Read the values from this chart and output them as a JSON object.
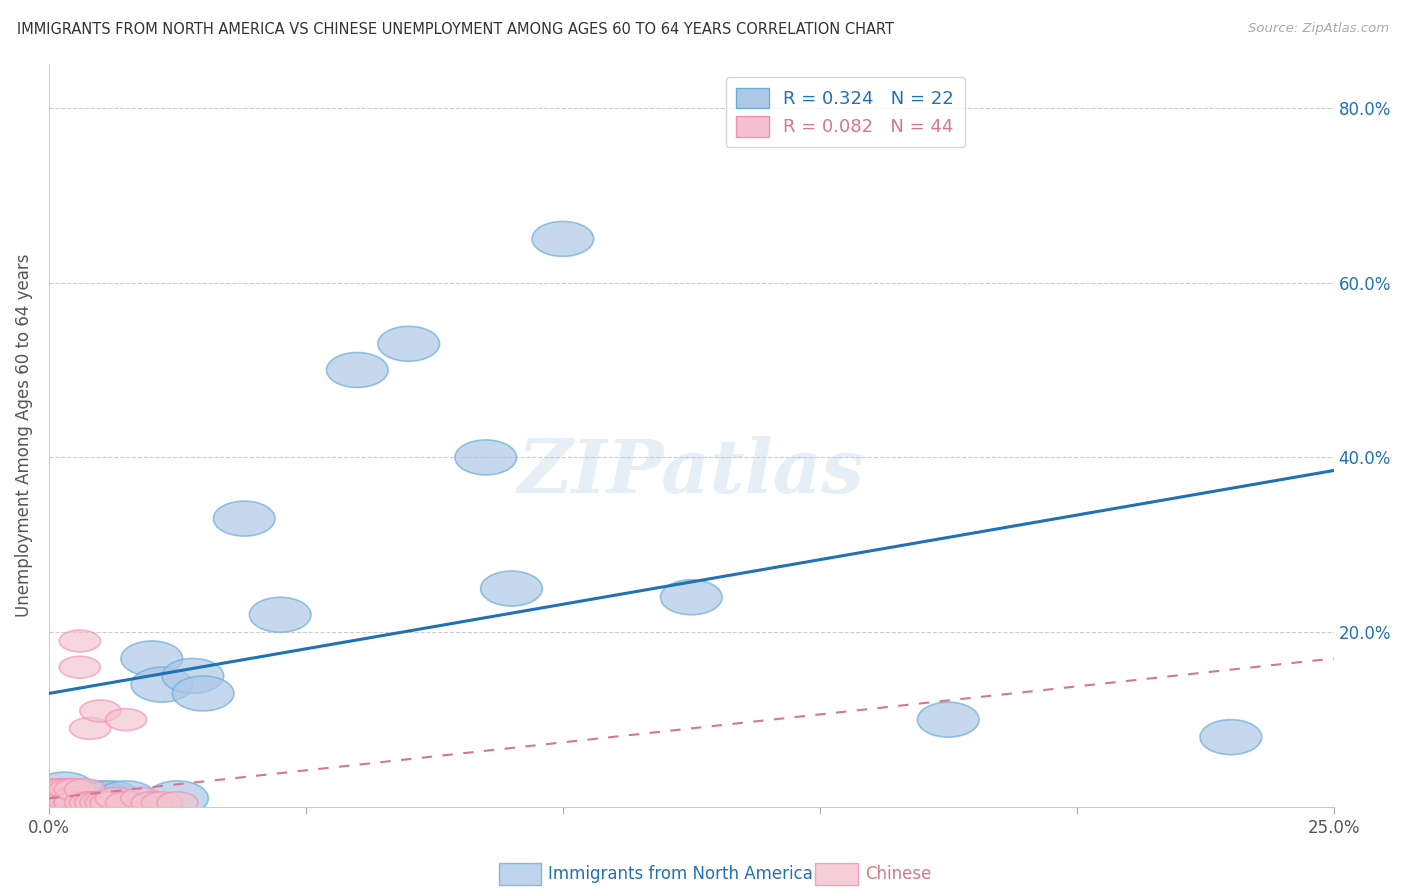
{
  "title": "IMMIGRANTS FROM NORTH AMERICA VS CHINESE UNEMPLOYMENT AMONG AGES 60 TO 64 YEARS CORRELATION CHART",
  "source": "Source: ZipAtlas.com",
  "ylabel": "Unemployment Among Ages 60 to 64 years",
  "xlim": [
    0.0,
    0.25
  ],
  "ylim": [
    0.0,
    0.85
  ],
  "xtick_positions": [
    0.0,
    0.05,
    0.1,
    0.15,
    0.2,
    0.25
  ],
  "xtick_labels": [
    "0.0%",
    "",
    "",
    "",
    "",
    "25.0%"
  ],
  "ytick_positions": [
    0.0,
    0.2,
    0.4,
    0.6,
    0.8
  ],
  "ytick_labels_right": [
    "",
    "20.0%",
    "40.0%",
    "60.0%",
    "80.0%"
  ],
  "blue_R": 0.324,
  "blue_N": 22,
  "pink_R": 0.082,
  "pink_N": 44,
  "blue_color": "#aec8e8",
  "blue_edge_color": "#6baed6",
  "pink_color": "#f4c2cf",
  "pink_edge_color": "#f48fb1",
  "blue_line_color": "#2171b5",
  "pink_line_color": "#d4788a",
  "watermark": "ZIPatlas",
  "blue_line_x0": 0.0,
  "blue_line_y0": 0.13,
  "blue_line_x1": 0.25,
  "blue_line_y1": 0.385,
  "pink_line_x0": 0.0,
  "pink_line_y0": 0.01,
  "pink_line_x1": 0.25,
  "pink_line_y1": 0.17,
  "blue_points_x": [
    0.001,
    0.003,
    0.005,
    0.008,
    0.01,
    0.012,
    0.015,
    0.02,
    0.022,
    0.025,
    0.028,
    0.03,
    0.038,
    0.045,
    0.06,
    0.07,
    0.085,
    0.09,
    0.1,
    0.125,
    0.175,
    0.23
  ],
  "blue_points_y": [
    0.01,
    0.02,
    0.01,
    0.01,
    0.01,
    0.01,
    0.01,
    0.17,
    0.14,
    0.01,
    0.15,
    0.13,
    0.33,
    0.22,
    0.5,
    0.53,
    0.4,
    0.25,
    0.65,
    0.24,
    0.1,
    0.08
  ],
  "pink_points_x": [
    0.0,
    0.0,
    0.001,
    0.001,
    0.001,
    0.001,
    0.001,
    0.002,
    0.002,
    0.002,
    0.002,
    0.002,
    0.002,
    0.003,
    0.003,
    0.003,
    0.003,
    0.003,
    0.004,
    0.004,
    0.004,
    0.004,
    0.005,
    0.005,
    0.005,
    0.005,
    0.006,
    0.006,
    0.007,
    0.007,
    0.008,
    0.008,
    0.009,
    0.01,
    0.01,
    0.011,
    0.012,
    0.013,
    0.015,
    0.015,
    0.018,
    0.02,
    0.022,
    0.025
  ],
  "pink_points_y": [
    0.005,
    0.01,
    0.005,
    0.01,
    0.005,
    0.02,
    0.005,
    0.005,
    0.01,
    0.005,
    0.02,
    0.005,
    0.01,
    0.005,
    0.01,
    0.005,
    0.02,
    0.005,
    0.005,
    0.01,
    0.005,
    0.02,
    0.005,
    0.01,
    0.005,
    0.02,
    0.16,
    0.19,
    0.005,
    0.02,
    0.005,
    0.09,
    0.005,
    0.005,
    0.11,
    0.005,
    0.005,
    0.01,
    0.1,
    0.005,
    0.01,
    0.005,
    0.005,
    0.005
  ]
}
